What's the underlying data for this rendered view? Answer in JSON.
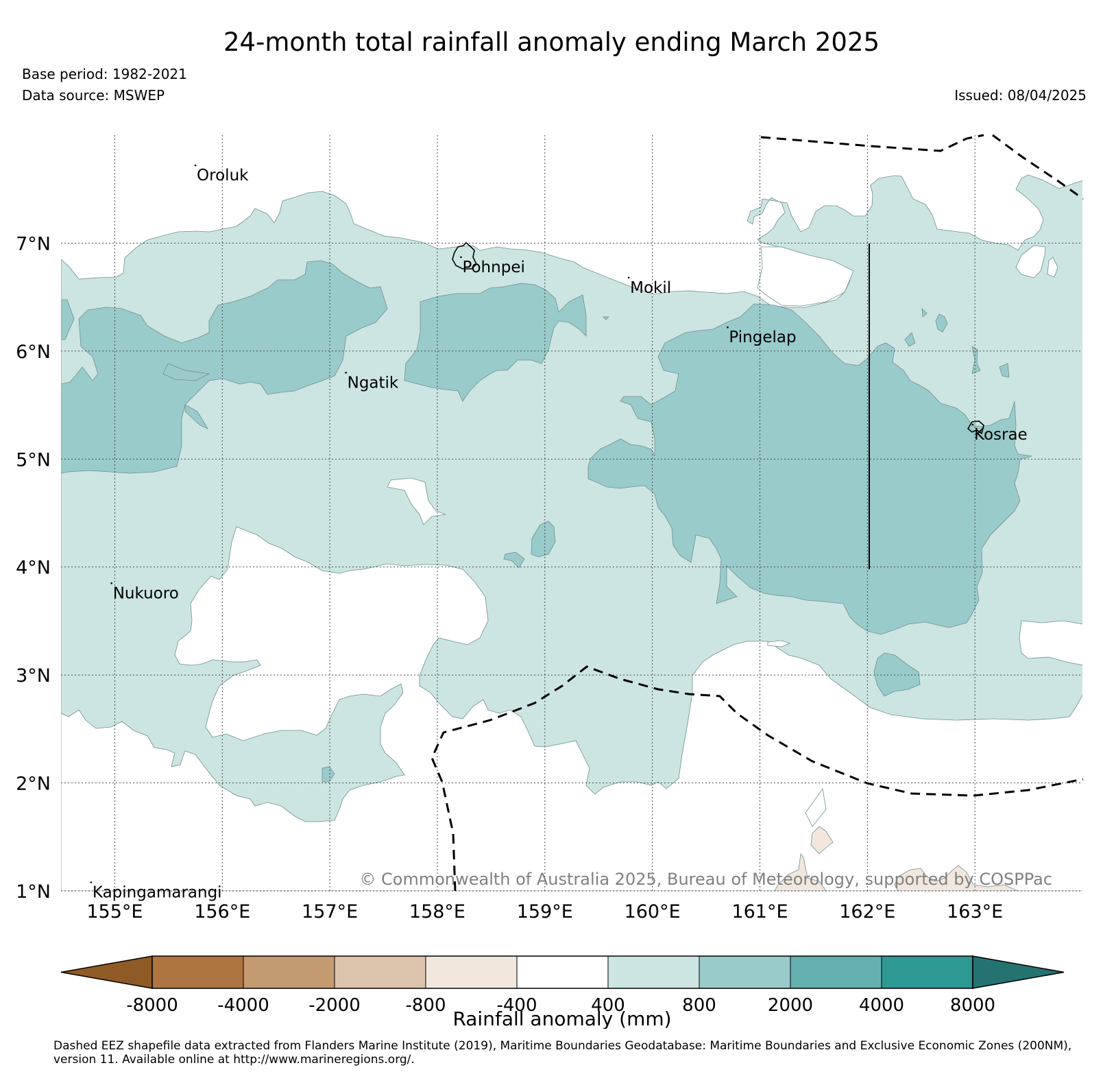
{
  "title": "24-month total rainfall anomaly ending March 2025",
  "base_period": "Base period: 1982-2021",
  "data_source": "Data source: MSWEP",
  "issued": "Issued: 08/04/2025",
  "copyright": "© Commonwealth of Australia 2025, Bureau of Meteorology, supported by COSPPac",
  "footnote": "Dashed EEZ shapefile data extracted from Flanders Marine Institute (2019), Maritime Boundaries Geodatabase: Maritime Boundaries and Exclusive Economic Zones (200NM), version 11. Available online at http://www.marineregions.org/.",
  "map": {
    "lon_range": [
      154.5,
      164.0
    ],
    "lat_range": [
      1.0,
      8.0
    ],
    "lon_ticks": [
      {
        "value": 155,
        "label": "155°E"
      },
      {
        "value": 156,
        "label": "156°E"
      },
      {
        "value": 157,
        "label": "157°E"
      },
      {
        "value": 158,
        "label": "158°E"
      },
      {
        "value": 159,
        "label": "159°E"
      },
      {
        "value": 160,
        "label": "160°E"
      },
      {
        "value": 161,
        "label": "161°E"
      },
      {
        "value": 162,
        "label": "162°E"
      },
      {
        "value": 163,
        "label": "163°E"
      }
    ],
    "lat_ticks": [
      {
        "value": 7,
        "label": "7°N"
      },
      {
        "value": 6,
        "label": "6°N"
      },
      {
        "value": 5,
        "label": "5°N"
      },
      {
        "value": 4,
        "label": "4°N"
      },
      {
        "value": 3,
        "label": "3°N"
      },
      {
        "value": 2,
        "label": "2°N"
      },
      {
        "value": 1,
        "label": "1°N"
      }
    ],
    "places": [
      {
        "name": "Oroluk",
        "lon": 155.75,
        "lat": 7.72
      },
      {
        "name": "Pohnpei",
        "lon": 158.22,
        "lat": 6.87
      },
      {
        "name": "Mokil",
        "lon": 159.78,
        "lat": 6.68
      },
      {
        "name": "Pingelap",
        "lon": 160.7,
        "lat": 6.22
      },
      {
        "name": "Ngatik",
        "lon": 157.15,
        "lat": 5.8
      },
      {
        "name": "Kosrae",
        "lon": 162.98,
        "lat": 5.32
      },
      {
        "name": "Nukuoro",
        "lon": 154.97,
        "lat": 3.85
      },
      {
        "name": "Kapingamarangi",
        "lon": 154.78,
        "lat": 1.08
      }
    ]
  },
  "colorbar": {
    "title": "Rainfall anomaly (mm)",
    "labels": [
      "-8000",
      "-4000",
      "-2000",
      "-800",
      "-400",
      "400",
      "800",
      "2000",
      "4000",
      "8000"
    ],
    "colors": [
      "#8f5a25",
      "#ae7540",
      "#c49a71",
      "#dcc3ab",
      "#f1e7dd",
      "#ffffff",
      "#cce5e3",
      "#9acbcb",
      "#64b1b0",
      "#2e9893",
      "#247371"
    ]
  }
}
